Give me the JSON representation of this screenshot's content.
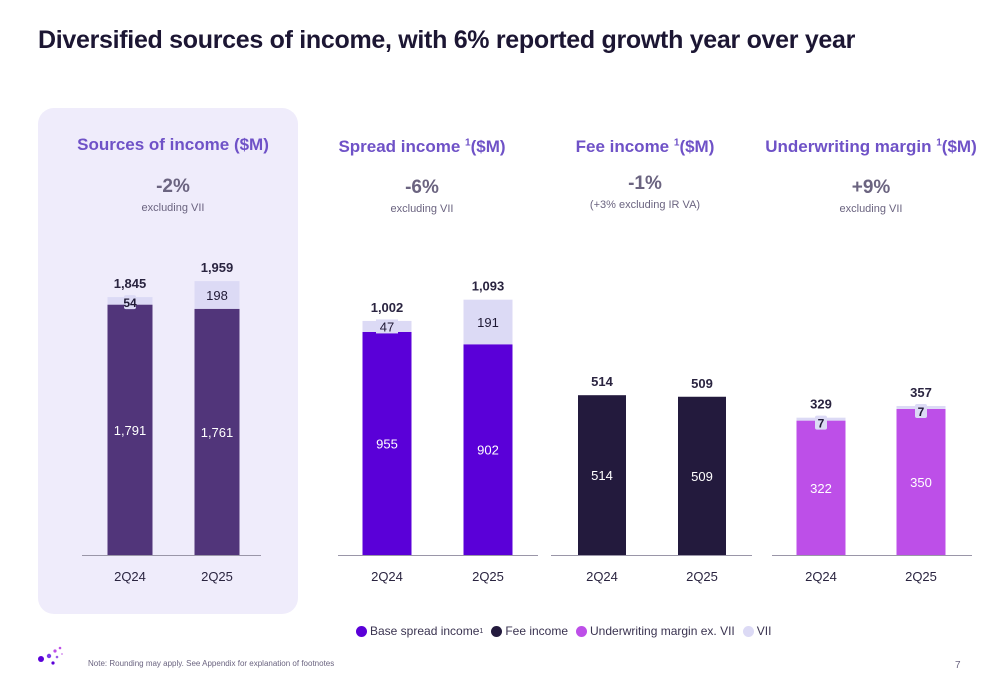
{
  "title": "Diversified sources of income, with 6% reported growth year over year",
  "colors": {
    "sources_total": "#51357a",
    "base_spread": "#5a00d8",
    "fee": "#231a3d",
    "underwriting": "#bd4fe8",
    "vii": "#dcdaf5",
    "panel_title": "#6f52c7"
  },
  "panels": [
    {
      "title": "Sources of income",
      "unit": "($M)",
      "footnote": "",
      "growth": "-2%",
      "subnote": "excluding VII"
    },
    {
      "title": "Spread income",
      "unit": "($M)",
      "footnote": "1",
      "growth": "-6%",
      "subnote": "excluding VII"
    },
    {
      "title": "Fee income",
      "unit": "($M)",
      "footnote": "1",
      "growth": "-1%",
      "subnote": "(+3% excluding IR VA)"
    },
    {
      "title": "Underwriting margin",
      "unit": "($M)",
      "footnote": "1",
      "growth": "+9%",
      "subnote": "excluding VII"
    }
  ],
  "chart_data": [
    {
      "type": "bar",
      "stacked": true,
      "title": "Sources of income ($M)",
      "categories": [
        "2Q24",
        "2Q25"
      ],
      "series": [
        {
          "values": [
            1791,
            1761
          ],
          "color_key": "sources_total"
        },
        {
          "values": [
            54,
            198
          ],
          "color_key": "vii"
        }
      ],
      "totals": [
        1845,
        1959
      ]
    },
    {
      "type": "bar",
      "stacked": true,
      "title": "Spread income ($M)",
      "categories": [
        "2Q24",
        "2Q25"
      ],
      "series": [
        {
          "name": "Base spread income",
          "values": [
            955,
            902
          ],
          "color_key": "base_spread"
        },
        {
          "name": "VII",
          "values": [
            47,
            191
          ],
          "color_key": "vii"
        }
      ],
      "totals": [
        1002,
        1093
      ]
    },
    {
      "type": "bar",
      "stacked": true,
      "title": "Fee income ($M)",
      "categories": [
        "2Q24",
        "2Q25"
      ],
      "series": [
        {
          "name": "Fee income",
          "values": [
            514,
            509
          ],
          "color_key": "fee"
        }
      ],
      "totals": [
        514,
        509
      ]
    },
    {
      "type": "bar",
      "stacked": true,
      "title": "Underwriting margin ($M)",
      "categories": [
        "2Q24",
        "2Q25"
      ],
      "series": [
        {
          "name": "Underwriting margin ex. VII",
          "values": [
            322,
            350
          ],
          "color_key": "underwriting"
        },
        {
          "name": "VII",
          "values": [
            7,
            7
          ],
          "color_key": "vii"
        }
      ],
      "totals": [
        329,
        357
      ]
    }
  ],
  "legend": [
    {
      "label": "Base spread income",
      "footnote": "1",
      "color_key": "base_spread"
    },
    {
      "label": "Fee income",
      "footnote": "",
      "color_key": "fee"
    },
    {
      "label": "Underwriting margin ex. VII",
      "footnote": "",
      "color_key": "underwriting"
    },
    {
      "label": "VII",
      "footnote": "",
      "color_key": "vii"
    }
  ],
  "note": "Note: Rounding may apply. See Appendix for explanation of footnotes",
  "page_number": "7"
}
